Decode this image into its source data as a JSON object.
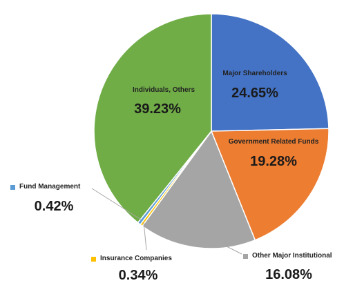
{
  "chart_data": {
    "type": "pie",
    "title": "",
    "slices": [
      {
        "label": "Major Shareholders",
        "value": 24.65,
        "display": "24.65%",
        "color": "#4472C4"
      },
      {
        "label": "Government Related Funds",
        "value": 19.28,
        "display": "19.28%",
        "color": "#ED7D31"
      },
      {
        "label": "Other Major Institutional",
        "value": 16.08,
        "display": "16.08%",
        "color": "#A5A5A5"
      },
      {
        "label": "Insurance Companies",
        "value": 0.34,
        "display": "0.34%",
        "color": "#FFC000"
      },
      {
        "label": "Fund Management",
        "value": 0.42,
        "display": "0.42%",
        "color": "#5B9BD5"
      },
      {
        "label": "Individuals, Others",
        "value": 39.23,
        "display": "39.23%",
        "color": "#70AD47"
      }
    ],
    "start_angle_deg": 0,
    "direction": "clockwise",
    "legend": "none"
  }
}
